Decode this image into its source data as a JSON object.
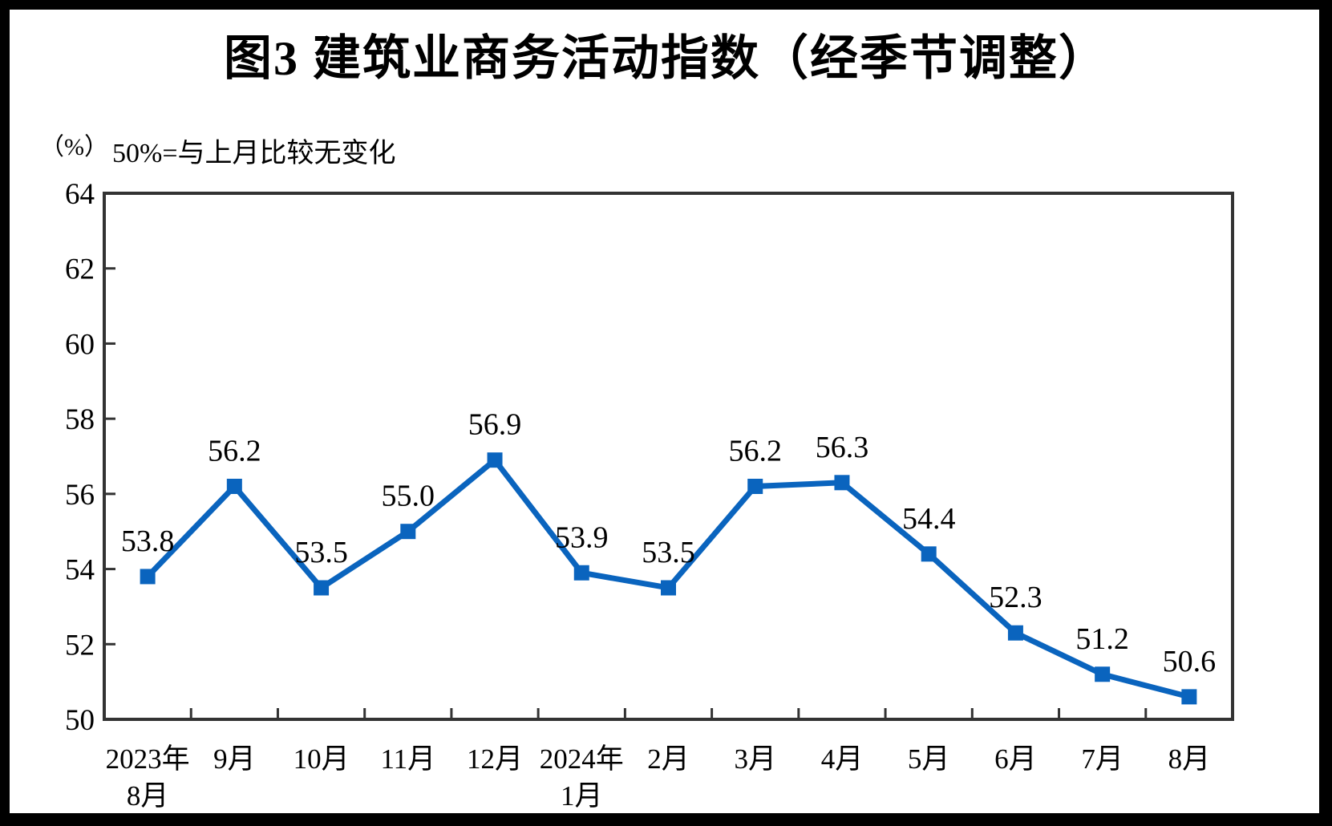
{
  "title": "图3 建筑业商务活动指数（经季节调整）",
  "unit_label": "（%）",
  "note": "50%=与上月比较无变化",
  "colors": {
    "line": "#0A64BE",
    "frame": "#333333",
    "text": "#000000",
    "page_bg": "#FFFFFF",
    "outer_bg": "#000000"
  },
  "chart_data": {
    "type": "line",
    "title": "图3 建筑业商务活动指数（经季节调整）",
    "subtitle_note": "50%=与上月比较无变化",
    "unit": "（%）",
    "xlabel": "",
    "ylabel": "",
    "grid": false,
    "legend_position": "none",
    "marker": "square",
    "ylim": [
      50,
      64
    ],
    "ytick_step": 2,
    "ytick_labels": [
      "50",
      "52",
      "54",
      "56",
      "58",
      "60",
      "62",
      "64"
    ],
    "categories": [
      [
        "2023年",
        "8月"
      ],
      [
        "9月"
      ],
      [
        "10月"
      ],
      [
        "11月"
      ],
      [
        "12月"
      ],
      [
        "2024年",
        "1月"
      ],
      [
        "2月"
      ],
      [
        "3月"
      ],
      [
        "4月"
      ],
      [
        "5月"
      ],
      [
        "6月"
      ],
      [
        "7月"
      ],
      [
        "8月"
      ]
    ],
    "series": [
      {
        "name": "建筑业商务活动指数",
        "values": [
          53.8,
          56.2,
          53.5,
          55.0,
          56.9,
          53.9,
          53.5,
          56.2,
          56.3,
          54.4,
          52.3,
          51.2,
          50.6
        ]
      }
    ],
    "data_labels": [
      "53.8",
      "56.2",
      "53.5",
      "55.0",
      "56.9",
      "53.9",
      "53.5",
      "56.2",
      "56.3",
      "54.4",
      "52.3",
      "51.2",
      "50.6"
    ]
  }
}
